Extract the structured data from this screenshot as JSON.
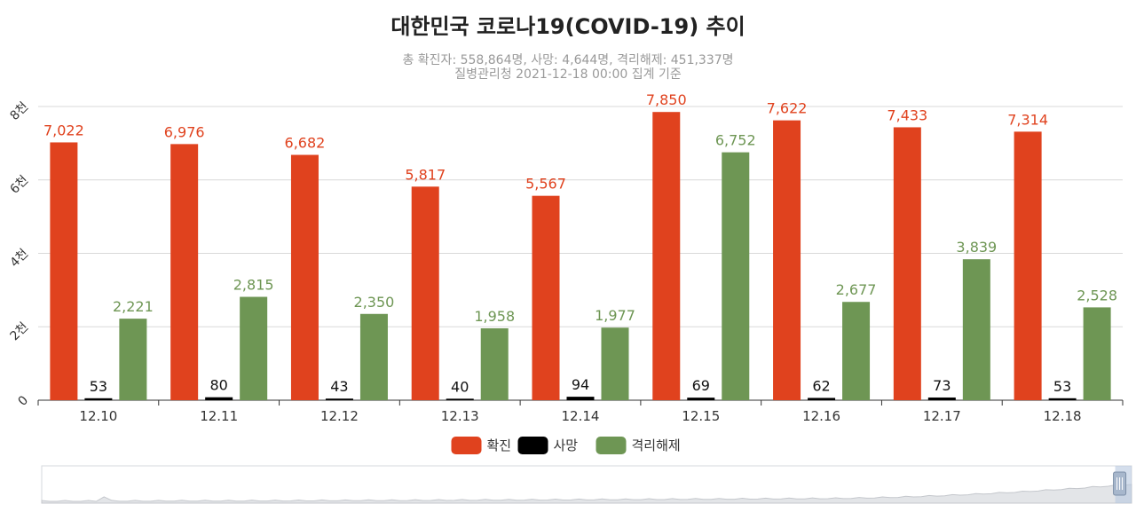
{
  "chart_data": {
    "type": "bar",
    "title": "대한민국 코로나19(COVID-19) 추이",
    "subtitle_lines": [
      "총 확진자: 558,864명, 사망: 4,644명, 격리해제: 451,337명",
      "질병관리청 2021-12-18 00:00 집계 기준"
    ],
    "categories": [
      "12.10",
      "12.11",
      "12.12",
      "12.13",
      "12.14",
      "12.15",
      "12.16",
      "12.17",
      "12.18"
    ],
    "series": [
      {
        "name": "확진",
        "color": "#e0421e",
        "values": [
          7022,
          6976,
          6682,
          5817,
          5567,
          7850,
          7622,
          7433,
          7314
        ],
        "labels": [
          "7,022",
          "6,976",
          "6,682",
          "5,817",
          "5,567",
          "7,850",
          "7,622",
          "7,433",
          "7,314"
        ]
      },
      {
        "name": "사망",
        "color": "#000000",
        "values": [
          53,
          80,
          43,
          40,
          94,
          69,
          62,
          73,
          53
        ],
        "labels": [
          "53",
          "80",
          "43",
          "40",
          "94",
          "69",
          "62",
          "73",
          "53"
        ]
      },
      {
        "name": "격리해제",
        "color": "#6e9654",
        "values": [
          2221,
          2815,
          2350,
          1958,
          1977,
          6752,
          2677,
          3839,
          2528
        ],
        "labels": [
          "2,221",
          "2,815",
          "2,350",
          "1,958",
          "1,977",
          "6,752",
          "2,677",
          "3,839",
          "2,528"
        ]
      }
    ],
    "ylim": [
      0,
      8000
    ],
    "yticks": [
      {
        "value": 0,
        "label": "0"
      },
      {
        "value": 2000,
        "label": "2천"
      },
      {
        "value": 4000,
        "label": "4천"
      },
      {
        "value": 6000,
        "label": "6천"
      },
      {
        "value": 8000,
        "label": "8천"
      }
    ],
    "grid": true,
    "legend_position": "bottom-center",
    "zoom_slider": {
      "range": [
        0.985,
        1.0
      ],
      "highlight_color": "#b8c8e0"
    }
  }
}
